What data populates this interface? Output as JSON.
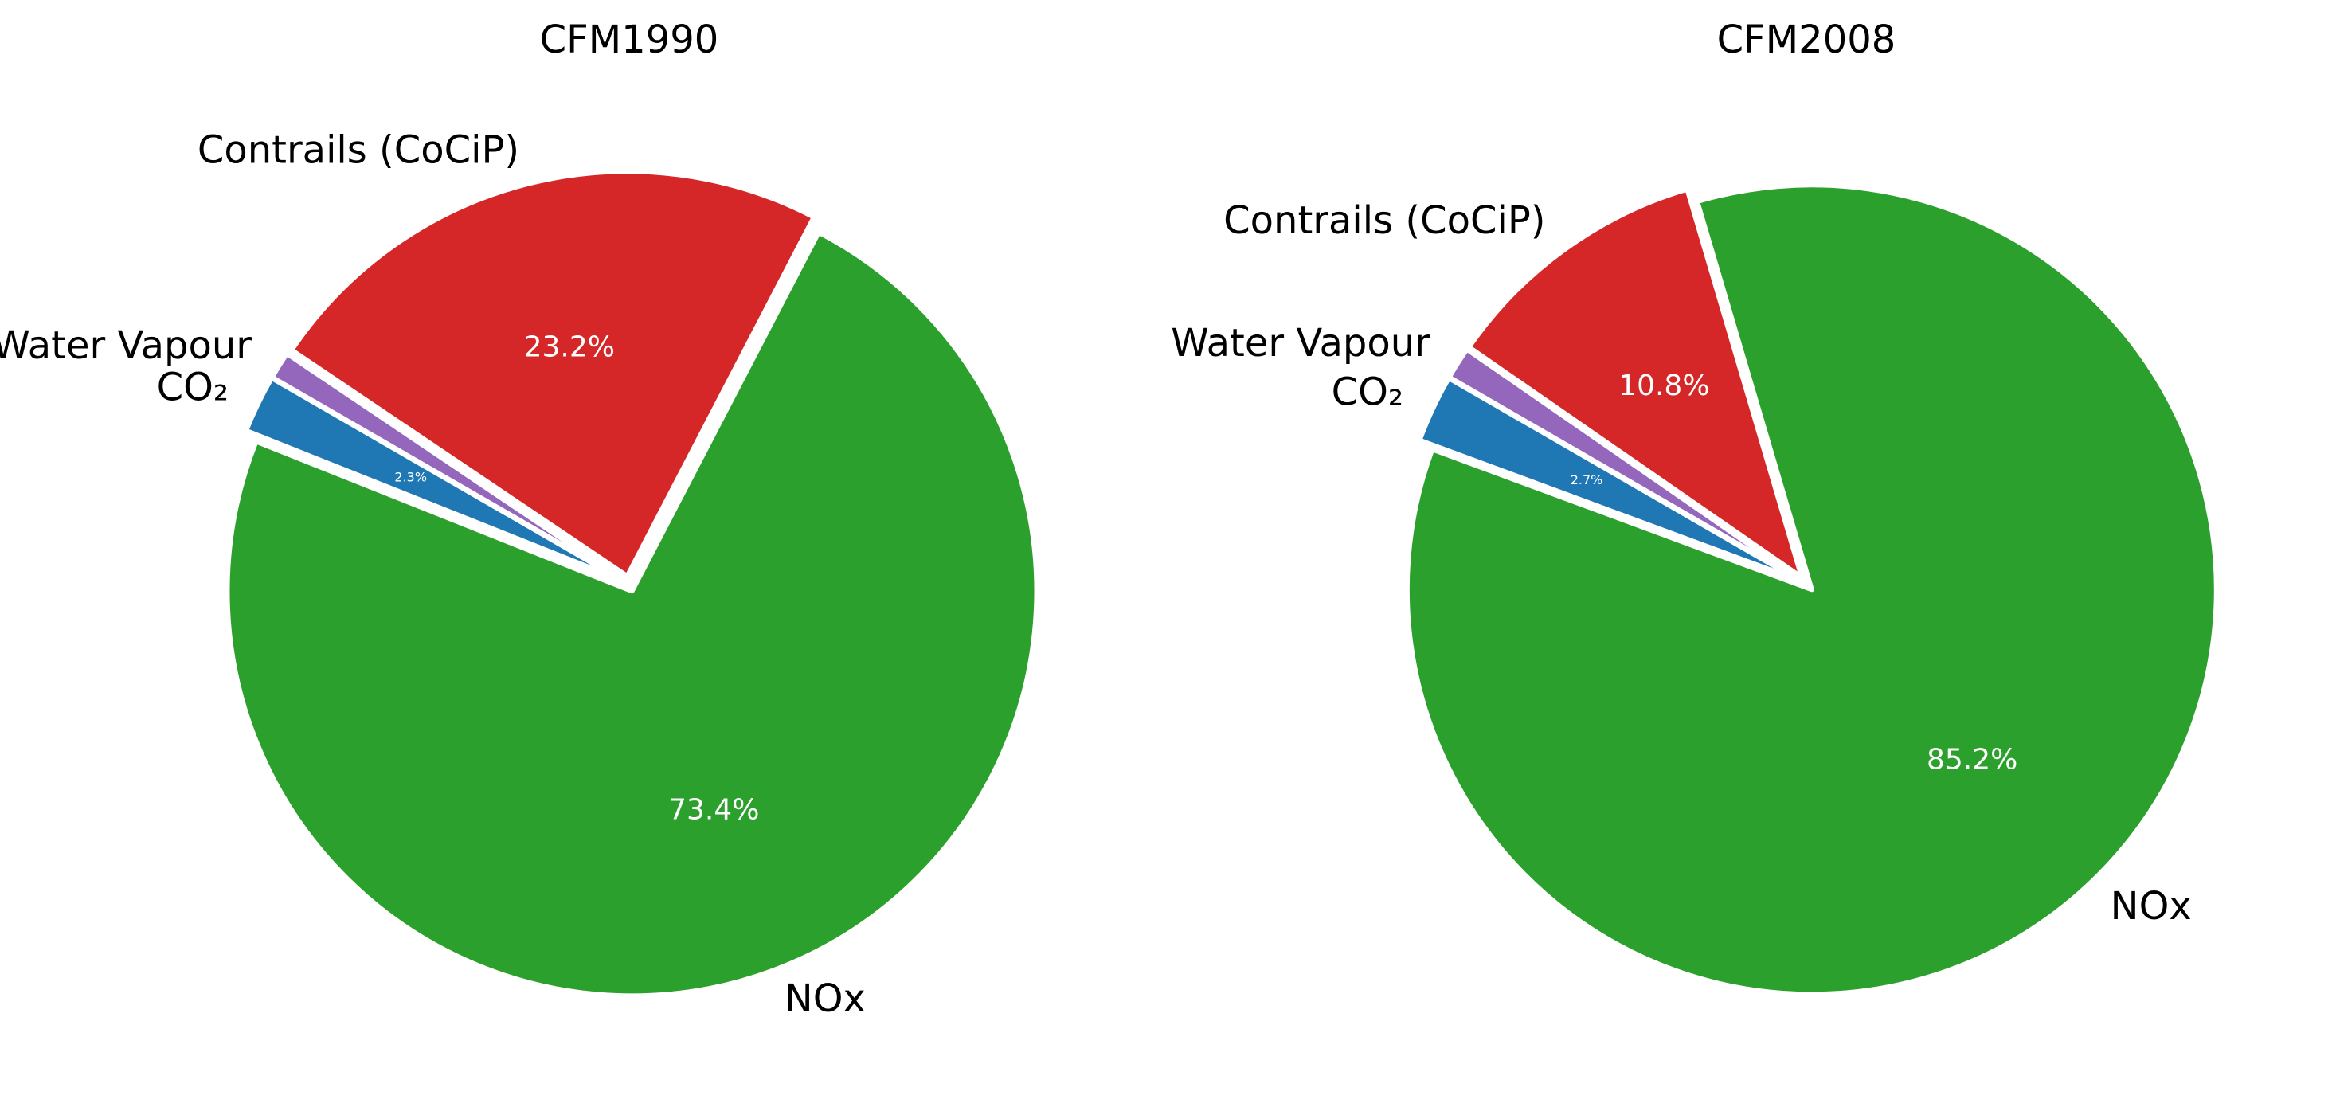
{
  "chart_data": [
    {
      "type": "pie",
      "title": "CFM1990",
      "start_angle_deg": 150,
      "direction": "counterclockwise",
      "explode_gap": true,
      "slices": [
        {
          "label": "CO₂",
          "value": 2.3,
          "pct_label": "2.3%",
          "color": "#1f77b4"
        },
        {
          "label": "NOx",
          "value": 73.4,
          "pct_label": "73.4%",
          "color": "#2ca02c"
        },
        {
          "label": "Contrails (CoCiP)",
          "value": 23.2,
          "pct_label": "23.2%",
          "color": "#d62728"
        },
        {
          "label": "Water Vapour",
          "value": 1.1,
          "pct_label": "",
          "color": "#9467bd"
        }
      ]
    },
    {
      "type": "pie",
      "title": "CFM2008",
      "start_angle_deg": 150,
      "direction": "counterclockwise",
      "explode_gap": true,
      "slices": [
        {
          "label": "CO₂",
          "value": 2.7,
          "pct_label": "2.7%",
          "color": "#1f77b4"
        },
        {
          "label": "NOx",
          "value": 85.2,
          "pct_label": "85.2%",
          "color": "#2ca02c"
        },
        {
          "label": "Contrails (CoCiP)",
          "value": 10.8,
          "pct_label": "10.8%",
          "color": "#d62728"
        },
        {
          "label": "Water Vapour",
          "value": 1.3,
          "pct_label": "",
          "color": "#9467bd"
        }
      ]
    }
  ]
}
